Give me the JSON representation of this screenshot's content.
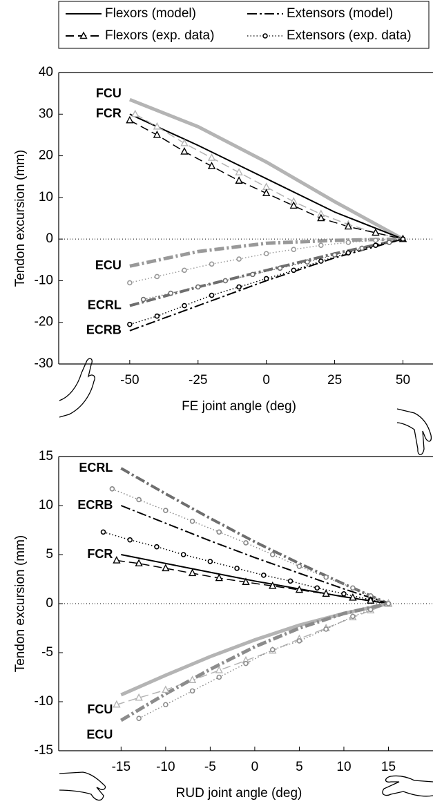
{
  "legend": {
    "entries": [
      {
        "label": "Flexors (model)",
        "style": "solid"
      },
      {
        "label": "Extensors (model)",
        "style": "dashdot"
      },
      {
        "label": "Flexors (exp. data)",
        "style": "dashed",
        "marker": "triangle"
      },
      {
        "label": "Extensors (exp. data)",
        "style": "dotted",
        "marker": "circle"
      }
    ]
  },
  "chart_data": [
    {
      "type": "line",
      "xlabel": "FE joint angle (deg)",
      "ylabel": "Tendon excursion (mm)",
      "xlim": [
        -76,
        61
      ],
      "ylim": [
        -30,
        40
      ],
      "xticks": [
        -50,
        -25,
        0,
        25,
        50
      ],
      "yticks": [
        -30,
        -20,
        -10,
        0,
        10,
        20,
        30,
        40
      ],
      "zero_line": true,
      "series": [
        {
          "name": "FCU",
          "color": "#b4b4b4",
          "style": "solid",
          "width": 5,
          "x": [
            -50,
            -25,
            0,
            25,
            50
          ],
          "values": [
            33.5,
            27,
            18.5,
            9,
            0
          ]
        },
        {
          "name": "FCR",
          "color": "#000000",
          "style": "solid",
          "width": 2,
          "x": [
            -50,
            -25,
            0,
            25,
            50
          ],
          "values": [
            30,
            22.5,
            14.5,
            6.5,
            0
          ]
        },
        {
          "color": "#b4b4b4",
          "style": "dashed",
          "width": 1.5,
          "marker": "triangle",
          "x": [
            -48,
            -40,
            -30,
            -20,
            -10,
            0,
            10,
            20,
            30,
            40,
            50
          ],
          "values": [
            30,
            27,
            23,
            19.5,
            16,
            12.5,
            9,
            6,
            3.5,
            1.5,
            0
          ]
        },
        {
          "color": "#000000",
          "style": "dashed",
          "width": 1.5,
          "marker": "triangle",
          "x": [
            -50,
            -40,
            -30,
            -20,
            -10,
            0,
            10,
            20,
            30,
            40,
            50
          ],
          "values": [
            28.5,
            25,
            21,
            17.5,
            14,
            11,
            8,
            5,
            3,
            1.5,
            0
          ]
        },
        {
          "name": "ECU",
          "color": "#999999",
          "style": "dashdot",
          "width": 5,
          "x": [
            -50,
            -25,
            0,
            25,
            50
          ],
          "values": [
            -6.5,
            -3,
            -1,
            -0.3,
            0
          ]
        },
        {
          "color": "#999999",
          "style": "dotted",
          "width": 1.5,
          "marker": "circle",
          "x": [
            -50,
            -40,
            -30,
            -20,
            -10,
            0,
            10,
            20,
            30,
            40,
            50
          ],
          "values": [
            -10.5,
            -9,
            -7.5,
            -6,
            -4.8,
            -3.5,
            -2.5,
            -1.5,
            -0.8,
            -0.3,
            0
          ]
        },
        {
          "name": "ECRL",
          "color": "#6e6e6e",
          "style": "dashdot",
          "width": 4,
          "x": [
            -50,
            -25,
            0,
            25,
            50
          ],
          "values": [
            -16,
            -11.5,
            -7.5,
            -3.5,
            0
          ]
        },
        {
          "color": "#6e6e6e",
          "style": "dotted",
          "width": 1.5,
          "marker": "circle",
          "x": [
            -45,
            -35,
            -25,
            -15,
            -5,
            5,
            15,
            25,
            35,
            45,
            50
          ],
          "values": [
            -14.5,
            -13,
            -11.5,
            -10,
            -8.5,
            -7,
            -5.5,
            -3.8,
            -2.2,
            -0.8,
            0
          ]
        },
        {
          "name": "ECRB",
          "color": "#000000",
          "style": "dashdot",
          "width": 2,
          "x": [
            -50,
            -25,
            0,
            25,
            50
          ],
          "values": [
            -22,
            -16,
            -10,
            -4.5,
            0
          ]
        },
        {
          "color": "#000000",
          "style": "dotted",
          "width": 1.5,
          "marker": "circle",
          "x": [
            -50,
            -40,
            -30,
            -20,
            -10,
            0,
            10,
            20,
            30,
            40,
            50
          ],
          "values": [
            -20.5,
            -18.5,
            -16,
            -13.5,
            -11.5,
            -9.5,
            -7.5,
            -5.3,
            -3.3,
            -1.5,
            0
          ]
        }
      ]
    },
    {
      "type": "line",
      "xlabel": "RUD joint angle (deg)",
      "ylabel": "Tendon excursion (mm)",
      "xlim": [
        -22,
        20
      ],
      "ylim": [
        -15,
        15
      ],
      "xticks": [
        -15,
        -10,
        -5,
        0,
        5,
        10,
        15
      ],
      "yticks": [
        -15,
        -10,
        -5,
        0,
        5,
        10,
        15
      ],
      "zero_line": true,
      "series": [
        {
          "name": "ECRL",
          "color": "#6e6e6e",
          "style": "dashdot",
          "width": 4,
          "x": [
            -15,
            -10,
            -5,
            0,
            5,
            10,
            15
          ],
          "values": [
            13.8,
            11.2,
            8.7,
            6.3,
            4.1,
            2,
            0
          ]
        },
        {
          "color": "#888888",
          "style": "dotted",
          "width": 1.5,
          "marker": "circle",
          "x": [
            -16,
            -13,
            -10,
            -7,
            -4,
            -1,
            2,
            5,
            8,
            11,
            13,
            15
          ],
          "values": [
            11.7,
            10.6,
            9.5,
            8.4,
            7.3,
            6.2,
            5,
            3.8,
            2.7,
            1.6,
            0.8,
            0
          ]
        },
        {
          "name": "ECRB",
          "color": "#000000",
          "style": "dashdot",
          "width": 2,
          "x": [
            -15,
            -10,
            -5,
            0,
            5,
            10,
            15
          ],
          "values": [
            10,
            8.2,
            6.4,
            4.7,
            3.1,
            1.5,
            0
          ]
        },
        {
          "color": "#000000",
          "style": "dotted",
          "width": 1.5,
          "marker": "circle",
          "x": [
            -17,
            -14,
            -11,
            -8,
            -5,
            -2,
            1,
            4,
            7,
            10,
            13,
            15
          ],
          "values": [
            7.3,
            6.5,
            5.8,
            5,
            4.3,
            3.6,
            2.9,
            2.3,
            1.6,
            1,
            0.4,
            0
          ]
        },
        {
          "name": "FCR",
          "color": "#000000",
          "style": "solid",
          "width": 2,
          "x": [
            -15,
            -10,
            -5,
            0,
            5,
            10,
            15
          ],
          "values": [
            5,
            4.1,
            3.2,
            2.3,
            1.5,
            0.7,
            0
          ]
        },
        {
          "color": "#000000",
          "style": "dashed",
          "width": 1.5,
          "marker": "triangle",
          "x": [
            -15.5,
            -13,
            -10,
            -7,
            -4,
            -1,
            2,
            5,
            8,
            11,
            13,
            15
          ],
          "values": [
            4.4,
            4.1,
            3.6,
            3.1,
            2.6,
            2.2,
            1.8,
            1.4,
            1,
            0.6,
            0.3,
            0
          ]
        },
        {
          "name": "FCU",
          "color": "#b4b4b4",
          "style": "solid",
          "width": 5,
          "x": [
            -15,
            -10,
            -5,
            0,
            5,
            10,
            15
          ],
          "values": [
            -9.3,
            -7.3,
            -5.4,
            -3.7,
            -2.2,
            -1,
            0
          ]
        },
        {
          "color": "#b4b4b4",
          "style": "dashed",
          "width": 1.5,
          "marker": "triangle",
          "x": [
            -15.5,
            -13,
            -10,
            -7,
            -4,
            -1,
            2,
            5,
            8,
            11,
            13,
            15
          ],
          "values": [
            -10.3,
            -9.6,
            -8.8,
            -7.8,
            -6.8,
            -5.8,
            -4.8,
            -3.6,
            -2.5,
            -1.4,
            -0.7,
            0
          ]
        },
        {
          "name": "ECU",
          "color": "#8c8c8c",
          "style": "dashdot",
          "width": 5,
          "x": [
            -15,
            -10,
            -5,
            0,
            5,
            10,
            15
          ],
          "values": [
            -11.9,
            -9.2,
            -6.7,
            -4.4,
            -2.5,
            -1,
            0
          ]
        },
        {
          "color": "#8c8c8c",
          "style": "dotted",
          "width": 1.5,
          "marker": "circle",
          "x": [
            -13,
            -10,
            -7,
            -4,
            -1,
            2,
            5,
            8,
            11,
            13,
            15
          ],
          "values": [
            -11.7,
            -10.3,
            -8.9,
            -7.5,
            -6.1,
            -4.7,
            -3.8,
            -2.6,
            -1.3,
            -0.6,
            0
          ]
        }
      ]
    }
  ]
}
